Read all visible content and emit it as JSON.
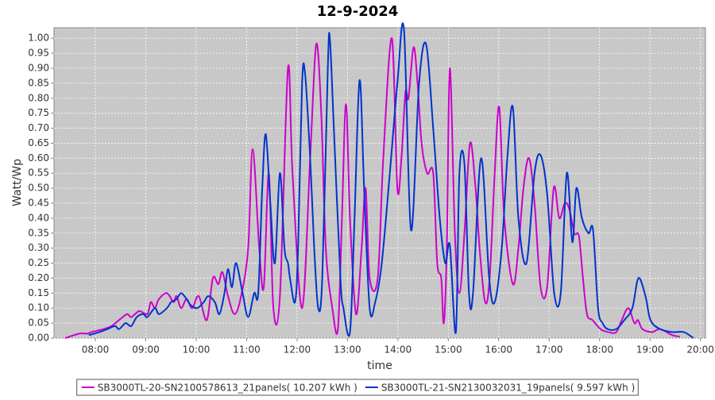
{
  "chart_data": {
    "type": "line",
    "title": "12-9-2024",
    "x_label": "time",
    "y_label": "Watt/Wp",
    "xlim": [
      7.18,
      20.1
    ],
    "ylim": [
      0,
      1.035
    ],
    "grid": true,
    "legend": "bottom",
    "background": "#c8c8c8",
    "xticks": [
      {
        "value": 8,
        "label": "08:00"
      },
      {
        "value": 9,
        "label": "09:00"
      },
      {
        "value": 10,
        "label": "10:00"
      },
      {
        "value": 11,
        "label": "11:00"
      },
      {
        "value": 12,
        "label": "12:00"
      },
      {
        "value": 13,
        "label": "13:00"
      },
      {
        "value": 14,
        "label": "14:00"
      },
      {
        "value": 15,
        "label": "15:00"
      },
      {
        "value": 16,
        "label": "16:00"
      },
      {
        "value": 17,
        "label": "17:00"
      },
      {
        "value": 18,
        "label": "18:00"
      },
      {
        "value": 19,
        "label": "19:00"
      },
      {
        "value": 20,
        "label": "20:00"
      }
    ],
    "yticks": [
      {
        "value": 0,
        "label": "0.00"
      },
      {
        "value": 0.05,
        "label": "0.05"
      },
      {
        "value": 0.1,
        "label": "0.10"
      },
      {
        "value": 0.15,
        "label": "0.15"
      },
      {
        "value": 0.2,
        "label": "0.20"
      },
      {
        "value": 0.25,
        "label": "0.25"
      },
      {
        "value": 0.3,
        "label": "0.30"
      },
      {
        "value": 0.35,
        "label": "0.35"
      },
      {
        "value": 0.4,
        "label": "0.40"
      },
      {
        "value": 0.45,
        "label": "0.45"
      },
      {
        "value": 0.5,
        "label": "0.50"
      },
      {
        "value": 0.55,
        "label": "0.55"
      },
      {
        "value": 0.6,
        "label": "0.60"
      },
      {
        "value": 0.65,
        "label": "0.65"
      },
      {
        "value": 0.7,
        "label": "0.70"
      },
      {
        "value": 0.75,
        "label": "0.75"
      },
      {
        "value": 0.8,
        "label": "0.80"
      },
      {
        "value": 0.85,
        "label": "0.85"
      },
      {
        "value": 0.9,
        "label": "0.90"
      },
      {
        "value": 0.95,
        "label": "0.95"
      },
      {
        "value": 1,
        "label": "1.00"
      }
    ],
    "series": [
      {
        "name": "SB3000TL-20-SN2100578613_21panels( 10.207 kWh )",
        "color": "#cc00cc",
        "x": [
          7.4,
          7.68,
          7.84,
          7.92,
          8.16,
          8.32,
          8.47,
          8.63,
          8.71,
          8.87,
          9.03,
          9.1,
          9.18,
          9.26,
          9.42,
          9.55,
          9.61,
          9.7,
          9.81,
          9.92,
          10.05,
          10.21,
          10.33,
          10.44,
          10.52,
          10.63,
          10.76,
          10.89,
          11.03,
          11.12,
          11.25,
          11.34,
          11.44,
          11.53,
          11.66,
          11.82,
          11.91,
          12.1,
          12.26,
          12.38,
          12.48,
          12.57,
          12.7,
          12.81,
          12.89,
          12.97,
          13.05,
          13.17,
          13.28,
          13.36,
          13.44,
          13.6,
          13.71,
          13.88,
          13.99,
          14.07,
          14.15,
          14.21,
          14.31,
          14.39,
          14.47,
          14.58,
          14.7,
          14.78,
          14.86,
          14.91,
          14.97,
          15.03,
          15.13,
          15.22,
          15.32,
          15.43,
          15.54,
          15.62,
          15.73,
          15.82,
          15.92,
          16.01,
          16.11,
          16.28,
          16.39,
          16.49,
          16.6,
          16.71,
          16.83,
          16.96,
          17.09,
          17.2,
          17.31,
          17.4,
          17.5,
          17.59,
          17.67,
          17.75,
          17.86,
          18.02,
          18.17,
          18.33,
          18.44,
          18.57,
          18.69,
          18.76,
          18.85,
          19.04,
          19.2,
          19.44,
          19.59
        ],
        "values": [
          0,
          0.015,
          0.015,
          0.02,
          0.03,
          0.04,
          0.06,
          0.08,
          0.07,
          0.09,
          0.08,
          0.12,
          0.1,
          0.13,
          0.15,
          0.12,
          0.14,
          0.1,
          0.13,
          0.1,
          0.14,
          0.06,
          0.2,
          0.18,
          0.22,
          0.14,
          0.08,
          0.14,
          0.3,
          0.63,
          0.3,
          0.17,
          0.55,
          0.1,
          0.14,
          0.9,
          0.55,
          0.1,
          0.6,
          0.98,
          0.75,
          0.3,
          0.1,
          0.03,
          0.4,
          0.78,
          0.4,
          0.08,
          0.3,
          0.5,
          0.2,
          0.2,
          0.6,
          1.0,
          0.5,
          0.6,
          0.82,
          0.8,
          0.97,
          0.85,
          0.65,
          0.55,
          0.55,
          0.25,
          0.2,
          0.05,
          0.3,
          0.9,
          0.35,
          0.15,
          0.35,
          0.65,
          0.5,
          0.3,
          0.12,
          0.2,
          0.55,
          0.77,
          0.4,
          0.18,
          0.3,
          0.5,
          0.6,
          0.45,
          0.17,
          0.17,
          0.5,
          0.4,
          0.45,
          0.43,
          0.35,
          0.34,
          0.2,
          0.08,
          0.06,
          0.03,
          0.02,
          0.02,
          0.06,
          0.1,
          0.05,
          0.06,
          0.03,
          0.02,
          0.03,
          0.01,
          0.005
        ]
      },
      {
        "name": "SB3000TL-21-SN2130032031_19panels( 9.597 kWh )",
        "color": "#0033cc",
        "x": [
          7.87,
          8.08,
          8.24,
          8.39,
          8.47,
          8.6,
          8.71,
          8.82,
          8.95,
          9.03,
          9.18,
          9.26,
          9.42,
          9.5,
          9.61,
          9.7,
          9.81,
          9.89,
          10.02,
          10.15,
          10.24,
          10.37,
          10.46,
          10.56,
          10.63,
          10.71,
          10.79,
          10.92,
          11.03,
          11.15,
          11.23,
          11.31,
          11.38,
          11.47,
          11.56,
          11.66,
          11.75,
          11.82,
          11.86,
          11.96,
          12.02,
          12.1,
          12.16,
          12.26,
          12.34,
          12.42,
          12.5,
          12.61,
          12.65,
          12.73,
          12.86,
          12.92,
          13.05,
          13.14,
          13.24,
          13.33,
          13.44,
          13.55,
          13.68,
          13.84,
          13.99,
          14.12,
          14.26,
          14.42,
          14.56,
          14.7,
          14.83,
          14.94,
          15.03,
          15.15,
          15.22,
          15.32,
          15.41,
          15.49,
          15.65,
          15.81,
          15.92,
          16.06,
          16.17,
          16.28,
          16.39,
          16.55,
          16.71,
          16.83,
          16.96,
          17.1,
          17.23,
          17.35,
          17.46,
          17.54,
          17.65,
          17.78,
          17.87,
          17.97,
          18.06,
          18.16,
          18.33,
          18.49,
          18.65,
          18.77,
          18.91,
          19.01,
          19.2,
          19.44,
          19.67,
          19.86
        ],
        "values": [
          0.01,
          0.02,
          0.03,
          0.04,
          0.03,
          0.05,
          0.04,
          0.07,
          0.08,
          0.07,
          0.1,
          0.08,
          0.1,
          0.12,
          0.13,
          0.15,
          0.13,
          0.11,
          0.1,
          0.12,
          0.14,
          0.12,
          0.08,
          0.15,
          0.23,
          0.17,
          0.25,
          0.15,
          0.07,
          0.15,
          0.15,
          0.5,
          0.68,
          0.45,
          0.25,
          0.55,
          0.3,
          0.25,
          0.2,
          0.12,
          0.3,
          0.85,
          0.88,
          0.6,
          0.3,
          0.1,
          0.2,
          0.9,
          1.0,
          0.7,
          0.2,
          0.1,
          0.02,
          0.4,
          0.86,
          0.5,
          0.1,
          0.12,
          0.25,
          0.55,
          0.85,
          1.03,
          0.36,
          0.85,
          0.98,
          0.7,
          0.4,
          0.25,
          0.31,
          0.02,
          0.55,
          0.58,
          0.15,
          0.15,
          0.6,
          0.2,
          0.12,
          0.3,
          0.6,
          0.77,
          0.4,
          0.25,
          0.55,
          0.61,
          0.48,
          0.15,
          0.15,
          0.55,
          0.32,
          0.5,
          0.4,
          0.35,
          0.36,
          0.1,
          0.05,
          0.03,
          0.03,
          0.06,
          0.1,
          0.2,
          0.14,
          0.06,
          0.03,
          0.02,
          0.02,
          0
        ]
      }
    ]
  }
}
